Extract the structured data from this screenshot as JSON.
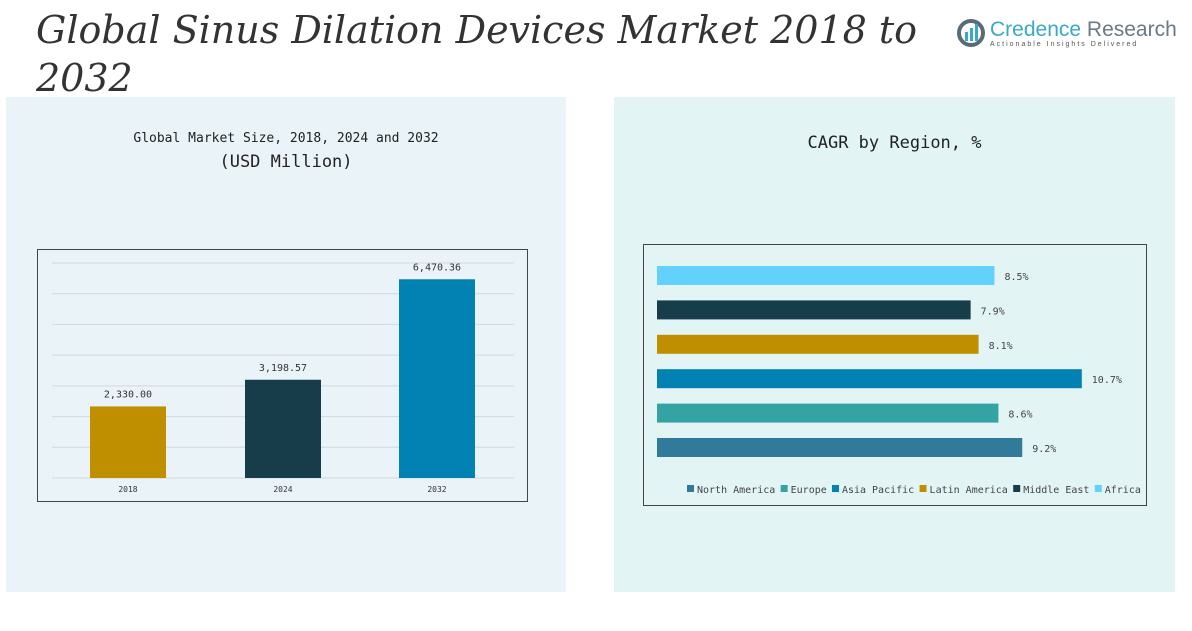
{
  "title": "Global Sinus Dilation Devices Market 2018 to 2032",
  "logo": {
    "name1": "Credence",
    "name2": " Research",
    "tagline": "Actionable Insights Delivered"
  },
  "chart_data": [
    {
      "type": "bar",
      "title": "Global Market Size, 2018, 2024 and 2032",
      "subtitle": "(USD Million)",
      "categories": [
        "2018",
        "2024",
        "2032"
      ],
      "values": [
        2330.0,
        3198.57,
        6470.36
      ],
      "labels": [
        "2,330.00",
        "3,198.57",
        "6,470.36"
      ],
      "colors": [
        "#c08f00",
        "#173c4a",
        "#0281b3"
      ],
      "ylim": [
        0,
        7000
      ],
      "grid": true
    },
    {
      "type": "bar",
      "orientation": "horizontal",
      "title": "CAGR by Region, %",
      "categories": [
        "North America",
        "Europe",
        "Asia Pacific",
        "Latin America",
        "Middle East",
        "Africa"
      ],
      "values": [
        9.2,
        8.6,
        10.7,
        8.1,
        7.9,
        8.5
      ],
      "labels": [
        "9.2%",
        "8.6%",
        "10.7%",
        "8.1%",
        "7.9%",
        "8.5%"
      ],
      "colors": [
        "#317a9a",
        "#33a3a3",
        "#0281b3",
        "#c08f00",
        "#173c4a",
        "#62d1fb"
      ],
      "legend": "bottom"
    }
  ]
}
